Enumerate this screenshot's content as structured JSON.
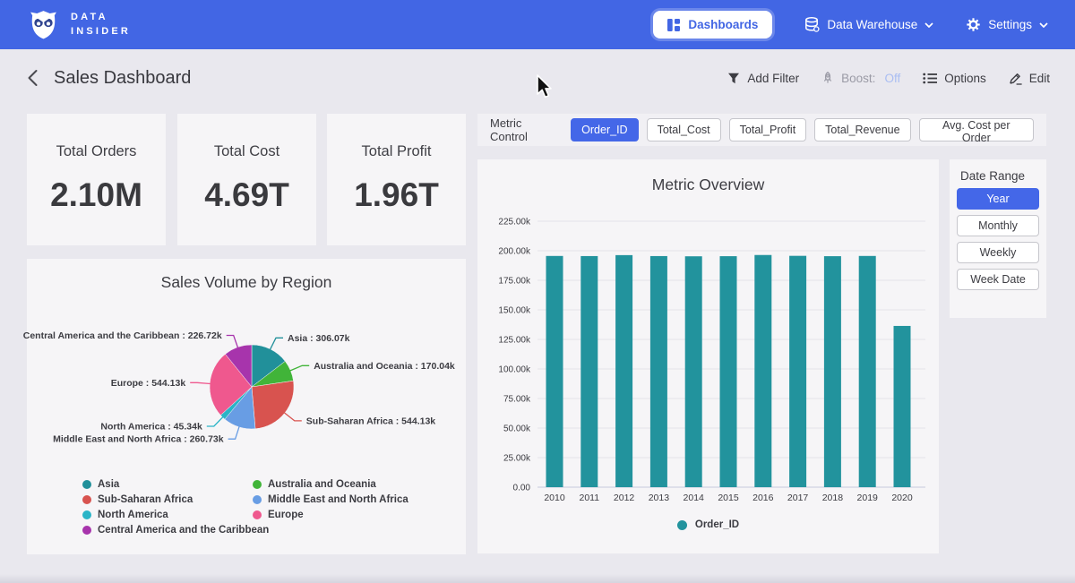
{
  "nav": {
    "brand_line1": "DATA",
    "brand_line2": "INSIDER",
    "dashboards": "Dashboards",
    "data_warehouse": "Data Warehouse",
    "settings": "Settings"
  },
  "header": {
    "title": "Sales Dashboard",
    "add_filter": "Add Filter",
    "boost_label": "Boost:",
    "boost_value": "Off",
    "options": "Options",
    "edit": "Edit"
  },
  "kpis": [
    {
      "label": "Total Orders",
      "value": "2.10M"
    },
    {
      "label": "Total Cost",
      "value": "4.69T"
    },
    {
      "label": "Total Profit",
      "value": "1.96T"
    }
  ],
  "metric_control": {
    "label": "Metric Control",
    "buttons": [
      {
        "label": "Order_ID",
        "selected": true
      },
      {
        "label": "Total_Cost",
        "selected": false
      },
      {
        "label": "Total_Profit",
        "selected": false
      },
      {
        "label": "Total_Revenue",
        "selected": false
      },
      {
        "label": "Avg. Cost per Order",
        "selected": false
      }
    ]
  },
  "date_range": {
    "label": "Date Range",
    "buttons": [
      {
        "label": "Year",
        "selected": true
      },
      {
        "label": "Monthly",
        "selected": false
      },
      {
        "label": "Weekly",
        "selected": false
      },
      {
        "label": "Week Date",
        "selected": false
      }
    ]
  },
  "theme": {
    "nav_blue": "#4266e4",
    "accent_blue": "#4467e8",
    "boost_off_blue": "#a9bdf2",
    "card_bg": "#f6f5f7",
    "page_bg": "#e9e8ee",
    "bar_teal": "#22939d"
  },
  "chart_data": [
    {
      "type": "pie",
      "title": "Sales Volume by Region",
      "unit": "k",
      "slices": [
        {
          "label": "Asia",
          "value": 306.07,
          "display": "Asia : 306.07k",
          "color": "#21909a"
        },
        {
          "label": "Australia and Oceania",
          "value": 170.04,
          "display": "Australia and Oceania : 170.04k",
          "color": "#41b439"
        },
        {
          "label": "Sub-Saharan Africa",
          "value": 544.13,
          "display": "Sub-Saharan Africa : 544.13k",
          "color": "#d8534f"
        },
        {
          "label": "Middle East and North Africa",
          "value": 260.73,
          "display": "Middle East and North Africa : 260.73k",
          "color": "#689de4"
        },
        {
          "label": "North America",
          "value": 45.34,
          "display": "North America : 45.34k",
          "color": "#2ab4c7"
        },
        {
          "label": "Europe",
          "value": 544.13,
          "display": "Europe : 544.13k",
          "color": "#ef588e"
        },
        {
          "label": "Central America and the Caribbean",
          "value": 226.72,
          "display": "Central America and the Caribbean : 226.72k",
          "color": "#a734ac"
        }
      ],
      "legend_columns": [
        [
          "Asia",
          "Sub-Saharan Africa",
          "North America",
          "Central America and the Caribbean"
        ],
        [
          "Australia and Oceania",
          "Middle East and North Africa",
          "Europe"
        ]
      ],
      "legend_position": "bottom"
    },
    {
      "type": "bar",
      "title": "Metric Overview",
      "categories": [
        "2010",
        "2011",
        "2012",
        "2013",
        "2014",
        "2015",
        "2016",
        "2017",
        "2018",
        "2019",
        "2020"
      ],
      "values": [
        195.6,
        195.5,
        196.3,
        195.5,
        195.3,
        195.4,
        196.4,
        195.7,
        195.4,
        195.6,
        136.4
      ],
      "unit": "k",
      "ylim": [
        0,
        225
      ],
      "ytick_step": 25,
      "ytick_labels": [
        "0.00",
        "25.00k",
        "50.00k",
        "75.00k",
        "100.00k",
        "125.00k",
        "150.00k",
        "175.00k",
        "200.00k",
        "225.00k"
      ],
      "grid": true,
      "bar_color": "#22939d",
      "legend": [
        {
          "label": "Order_ID",
          "color": "#22939d"
        }
      ],
      "legend_position": "bottom"
    }
  ]
}
